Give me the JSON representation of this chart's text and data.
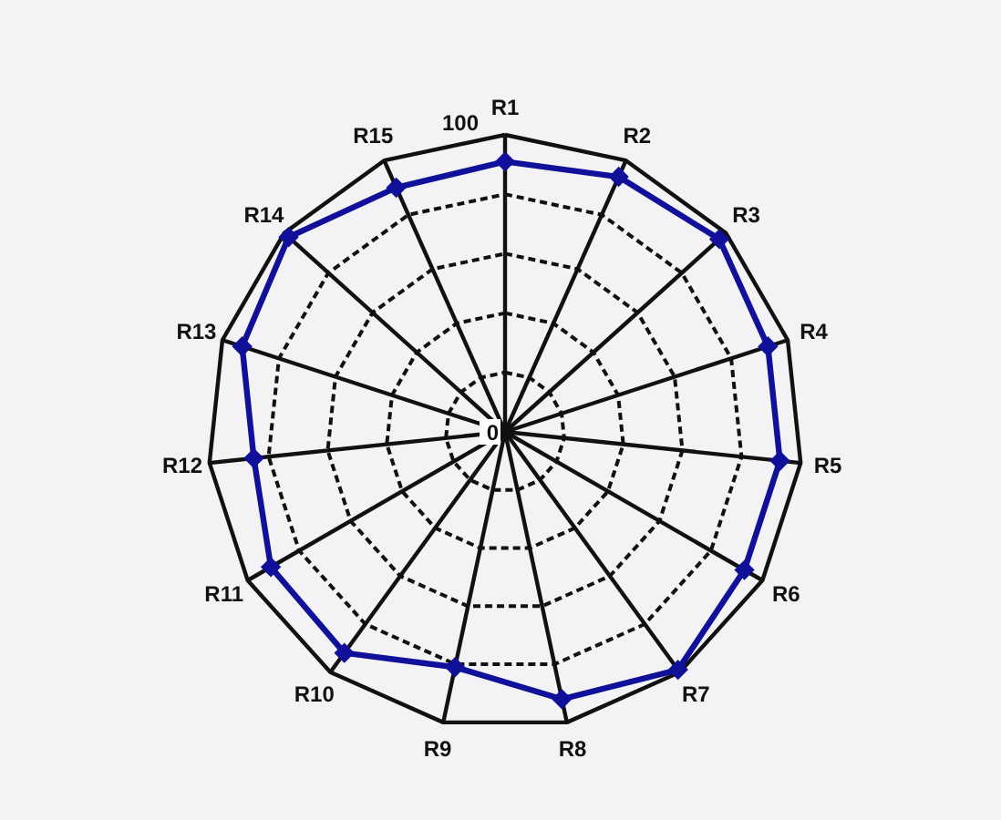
{
  "chart_data": {
    "type": "radar",
    "categories": [
      "R1",
      "R2",
      "R3",
      "R4",
      "R5",
      "R6",
      "R7",
      "R8",
      "R9",
      "R10",
      "R11",
      "R12",
      "R13",
      "R14",
      "R15"
    ],
    "series": [
      {
        "color": "#10109a",
        "values": [
          91,
          94,
          97,
          93,
          93,
          93,
          99,
          92,
          81,
          92,
          91,
          85,
          93,
          98,
          90
        ]
      }
    ],
    "ylim": [
      0,
      100
    ],
    "yticks": [
      0,
      100
    ],
    "grid": true,
    "marker": "diamond",
    "line_style": "solid"
  }
}
